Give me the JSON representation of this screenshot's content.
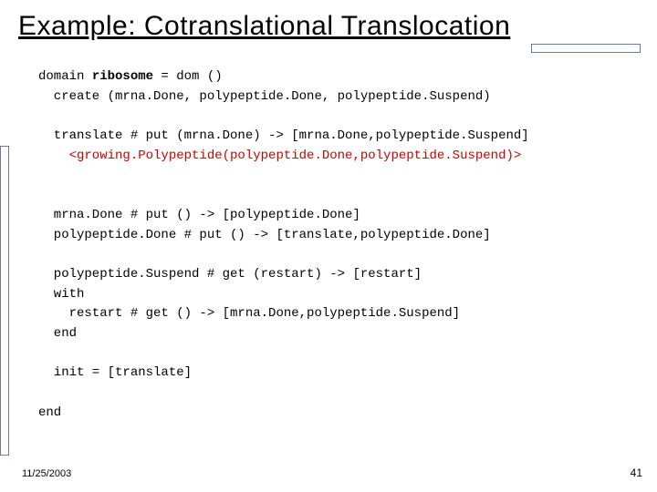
{
  "slide": {
    "title": "Example: Cotranslational Translocation",
    "date": "11/25/2003",
    "page_number": "41",
    "colors": {
      "background": "#ffffff",
      "title_text": "#000000",
      "accent_border": "#6b7a99",
      "code_text": "#000000",
      "code_highlight": "#cc0000"
    },
    "typography": {
      "title_fontsize": 30,
      "code_fontsize": 14,
      "footer_fontsize": 11,
      "code_font": "Courier New"
    },
    "code": {
      "l1_a": "domain ",
      "l1_b": "ribosome",
      "l1_c": " = dom ()",
      "l2": "  create (mrna.Done, polypeptide.Done, polypeptide.Suspend)",
      "l3": "",
      "l4": "  translate # put (mrna.Done) -> [mrna.Done,polypeptide.Suspend]",
      "l5": "    <growing.Polypeptide(polypeptide.Done,polypeptide.Suspend)>",
      "l6": "",
      "l7": "",
      "l8": "  mrna.Done # put () -> [polypeptide.Done]",
      "l9": "  polypeptide.Done # put () -> [translate,polypeptide.Done]",
      "l10": "",
      "l11": "  polypeptide.Suspend # get (restart) -> [restart]",
      "l12": "  with",
      "l13": "    restart # get () -> [mrna.Done,polypeptide.Suspend]",
      "l14": "  end",
      "l15": "",
      "l16": "  init = [translate]",
      "l17": "",
      "l18": "end"
    }
  }
}
